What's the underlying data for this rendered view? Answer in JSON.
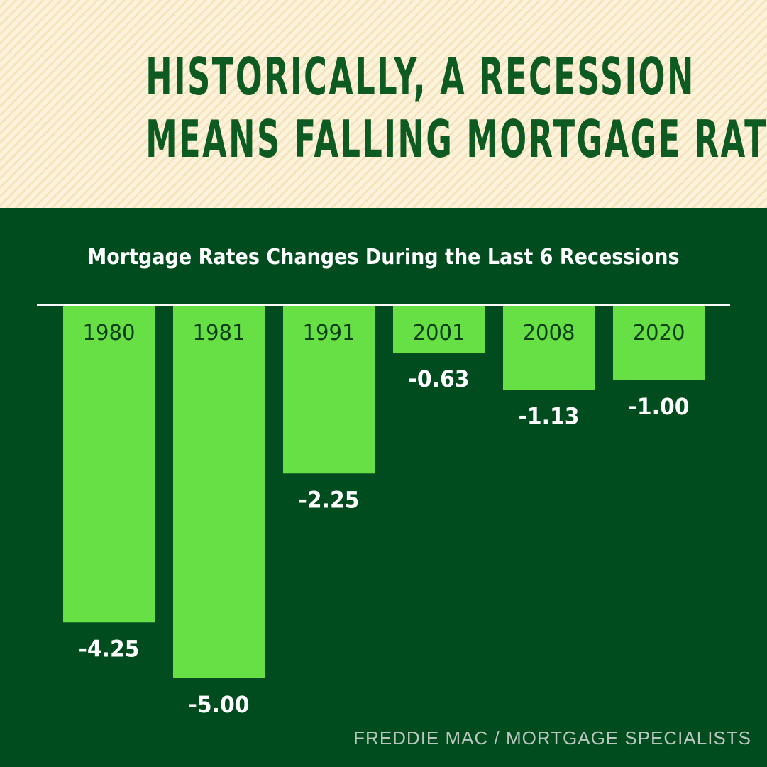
{
  "header": {
    "headline_line1": "HISTORICALLY, A RECESSION",
    "headline_line2": "MEANS FALLING MORTGAGE RATES"
  },
  "footer": {
    "source": "FREDDIE MAC / MORTGAGE SPECIALISTS"
  },
  "colors": {
    "background": "#004c1f",
    "header_background": "#fdf3dc",
    "headline": "#0d5a22",
    "bar": "#66e044",
    "bar_label": "#0a3d18",
    "value_label": "#ffffff",
    "baseline": "#ffffff"
  },
  "chart_data": {
    "type": "bar",
    "title": "Mortgage Rates Changes During the Last 6 Recessions",
    "xlabel": "",
    "ylabel": "",
    "categories": [
      "1980",
      "1981",
      "1991",
      "2001",
      "2008",
      "2020"
    ],
    "values": [
      -4.25,
      -5.0,
      -2.25,
      -0.63,
      -1.13,
      -1.0
    ],
    "value_labels": [
      "-4.25",
      "-5.00",
      "-2.25",
      "-0.63",
      "-1.13",
      "-1.00"
    ],
    "ylim": [
      -5.0,
      0
    ],
    "grid": false,
    "legend": "none"
  }
}
